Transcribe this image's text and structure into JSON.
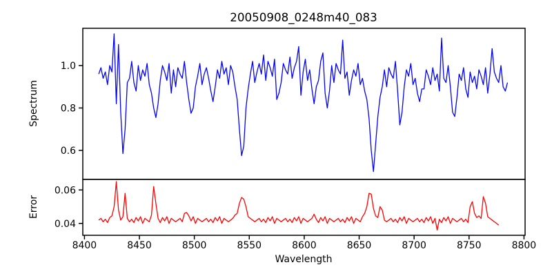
{
  "title": "20050908_0248m40_083",
  "axes": {
    "xlabel": "Wavelength",
    "spectrum_ylabel": "Spectrum",
    "error_ylabel": "Error",
    "xlim": [
      8398.5,
      8801
    ],
    "spectrum_ylim": [
      0.463,
      1.176
    ],
    "error_ylim": [
      0.0329,
      0.0663
    ],
    "xticks": [
      "8400",
      "8450",
      "8500",
      "8550",
      "8600",
      "8650",
      "8700",
      "8750",
      "8800"
    ],
    "spectrum_yticks": [
      "0.6",
      "0.8",
      "1.0"
    ],
    "error_yticks": [
      "0.04",
      "0.06"
    ],
    "grid": false,
    "legend": false
  },
  "colors": {
    "spectrum_line": "#0000ff",
    "error_line": "#ff0000",
    "frame": "#000000",
    "text": "#000000",
    "background": "#ffffff"
  },
  "chart_data": [
    {
      "type": "line",
      "name": "spectrum",
      "color": "#0000ff",
      "x_start": 8413,
      "x_step": 2,
      "values": [
        0.96,
        0.99,
        0.94,
        0.97,
        0.91,
        1.0,
        0.97,
        1.15,
        0.82,
        1.1,
        0.78,
        0.585,
        0.7,
        0.92,
        0.94,
        1.02,
        0.92,
        0.88,
        1.0,
        0.93,
        0.98,
        0.95,
        1.01,
        0.91,
        0.87,
        0.8,
        0.755,
        0.82,
        0.93,
        1.0,
        0.97,
        0.93,
        1.01,
        0.87,
        0.98,
        0.9,
        0.99,
        0.96,
        0.94,
        1.02,
        0.92,
        0.84,
        0.775,
        0.8,
        0.9,
        0.95,
        1.01,
        0.91,
        0.96,
        0.99,
        0.94,
        0.88,
        0.83,
        0.9,
        0.98,
        0.94,
        1.02,
        0.96,
        0.99,
        0.91,
        1.0,
        0.97,
        0.9,
        0.84,
        0.7,
        0.575,
        0.62,
        0.8,
        0.89,
        0.96,
        1.02,
        0.92,
        0.97,
        1.01,
        0.96,
        1.05,
        0.93,
        1.02,
        0.99,
        0.95,
        1.03,
        0.84,
        0.87,
        0.92,
        1.01,
        0.98,
        0.96,
        1.04,
        0.94,
        0.99,
        1.02,
        1.09,
        0.86,
        0.97,
        1.03,
        0.93,
        0.98,
        0.89,
        0.82,
        0.9,
        0.93,
        1.02,
        1.06,
        0.87,
        0.8,
        0.88,
        1.0,
        0.92,
        1.01,
        0.98,
        0.96,
        1.12,
        0.94,
        0.97,
        0.86,
        0.93,
        0.98,
        0.95,
        1.01,
        0.91,
        0.94,
        0.88,
        0.84,
        0.75,
        0.6,
        0.5,
        0.63,
        0.76,
        0.85,
        0.9,
        0.98,
        0.9,
        0.99,
        0.96,
        0.94,
        1.02,
        0.88,
        0.72,
        0.78,
        0.9,
        0.98,
        0.95,
        1.01,
        0.91,
        0.94,
        0.87,
        0.83,
        0.89,
        0.89,
        0.98,
        0.95,
        0.91,
        0.99,
        0.93,
        0.96,
        0.88,
        1.13,
        0.94,
        0.92,
        1.0,
        0.9,
        0.78,
        0.76,
        0.85,
        0.96,
        0.93,
        0.99,
        0.89,
        0.85,
        0.97,
        0.92,
        0.95,
        0.89,
        0.98,
        0.95,
        0.91,
        0.99,
        0.87,
        0.96,
        1.08,
        0.97,
        0.94,
        0.92,
        1.0,
        0.9,
        0.88,
        0.92
      ]
    },
    {
      "type": "line",
      "name": "error",
      "color": "#ff0000",
      "x_start": 8413,
      "x_step": 2,
      "values": [
        0.042,
        0.043,
        0.041,
        0.0425,
        0.0405,
        0.0435,
        0.0445,
        0.05,
        0.065,
        0.048,
        0.042,
        0.044,
        0.058,
        0.043,
        0.041,
        0.0425,
        0.0405,
        0.0435,
        0.0415,
        0.044,
        0.04,
        0.043,
        0.042,
        0.041,
        0.045,
        0.062,
        0.052,
        0.043,
        0.0405,
        0.0435,
        0.0415,
        0.044,
        0.04,
        0.043,
        0.042,
        0.041,
        0.042,
        0.043,
        0.041,
        0.046,
        0.0465,
        0.0445,
        0.0415,
        0.044,
        0.04,
        0.043,
        0.042,
        0.041,
        0.042,
        0.043,
        0.041,
        0.0425,
        0.0405,
        0.0435,
        0.0415,
        0.044,
        0.04,
        0.043,
        0.042,
        0.041,
        0.042,
        0.043,
        0.045,
        0.046,
        0.052,
        0.0555,
        0.0545,
        0.05,
        0.044,
        0.043,
        0.042,
        0.041,
        0.042,
        0.043,
        0.041,
        0.0425,
        0.0405,
        0.0435,
        0.0415,
        0.044,
        0.04,
        0.043,
        0.042,
        0.041,
        0.042,
        0.043,
        0.041,
        0.0425,
        0.0405,
        0.0435,
        0.0415,
        0.044,
        0.04,
        0.043,
        0.042,
        0.041,
        0.042,
        0.043,
        0.0455,
        0.0425,
        0.0405,
        0.0435,
        0.0415,
        0.044,
        0.04,
        0.043,
        0.042,
        0.041,
        0.042,
        0.043,
        0.041,
        0.0425,
        0.0405,
        0.0435,
        0.0415,
        0.044,
        0.04,
        0.043,
        0.042,
        0.041,
        0.044,
        0.046,
        0.05,
        0.058,
        0.0575,
        0.049,
        0.0445,
        0.0435,
        0.05,
        0.048,
        0.042,
        0.041,
        0.042,
        0.043,
        0.041,
        0.0425,
        0.0405,
        0.0435,
        0.0415,
        0.044,
        0.04,
        0.043,
        0.042,
        0.041,
        0.042,
        0.043,
        0.041,
        0.0425,
        0.0405,
        0.0435,
        0.0415,
        0.044,
        0.04,
        0.043,
        0.036,
        0.0425,
        0.0405,
        0.0435,
        0.0415,
        0.044,
        0.04,
        0.043,
        0.042,
        0.041,
        0.042,
        0.043,
        0.041,
        0.0425,
        0.0405,
        0.05,
        0.053,
        0.046,
        0.0435,
        0.0445,
        0.043,
        0.056,
        0.052,
        0.044,
        0.043,
        0.042,
        0.041,
        0.04,
        0.039
      ]
    }
  ]
}
